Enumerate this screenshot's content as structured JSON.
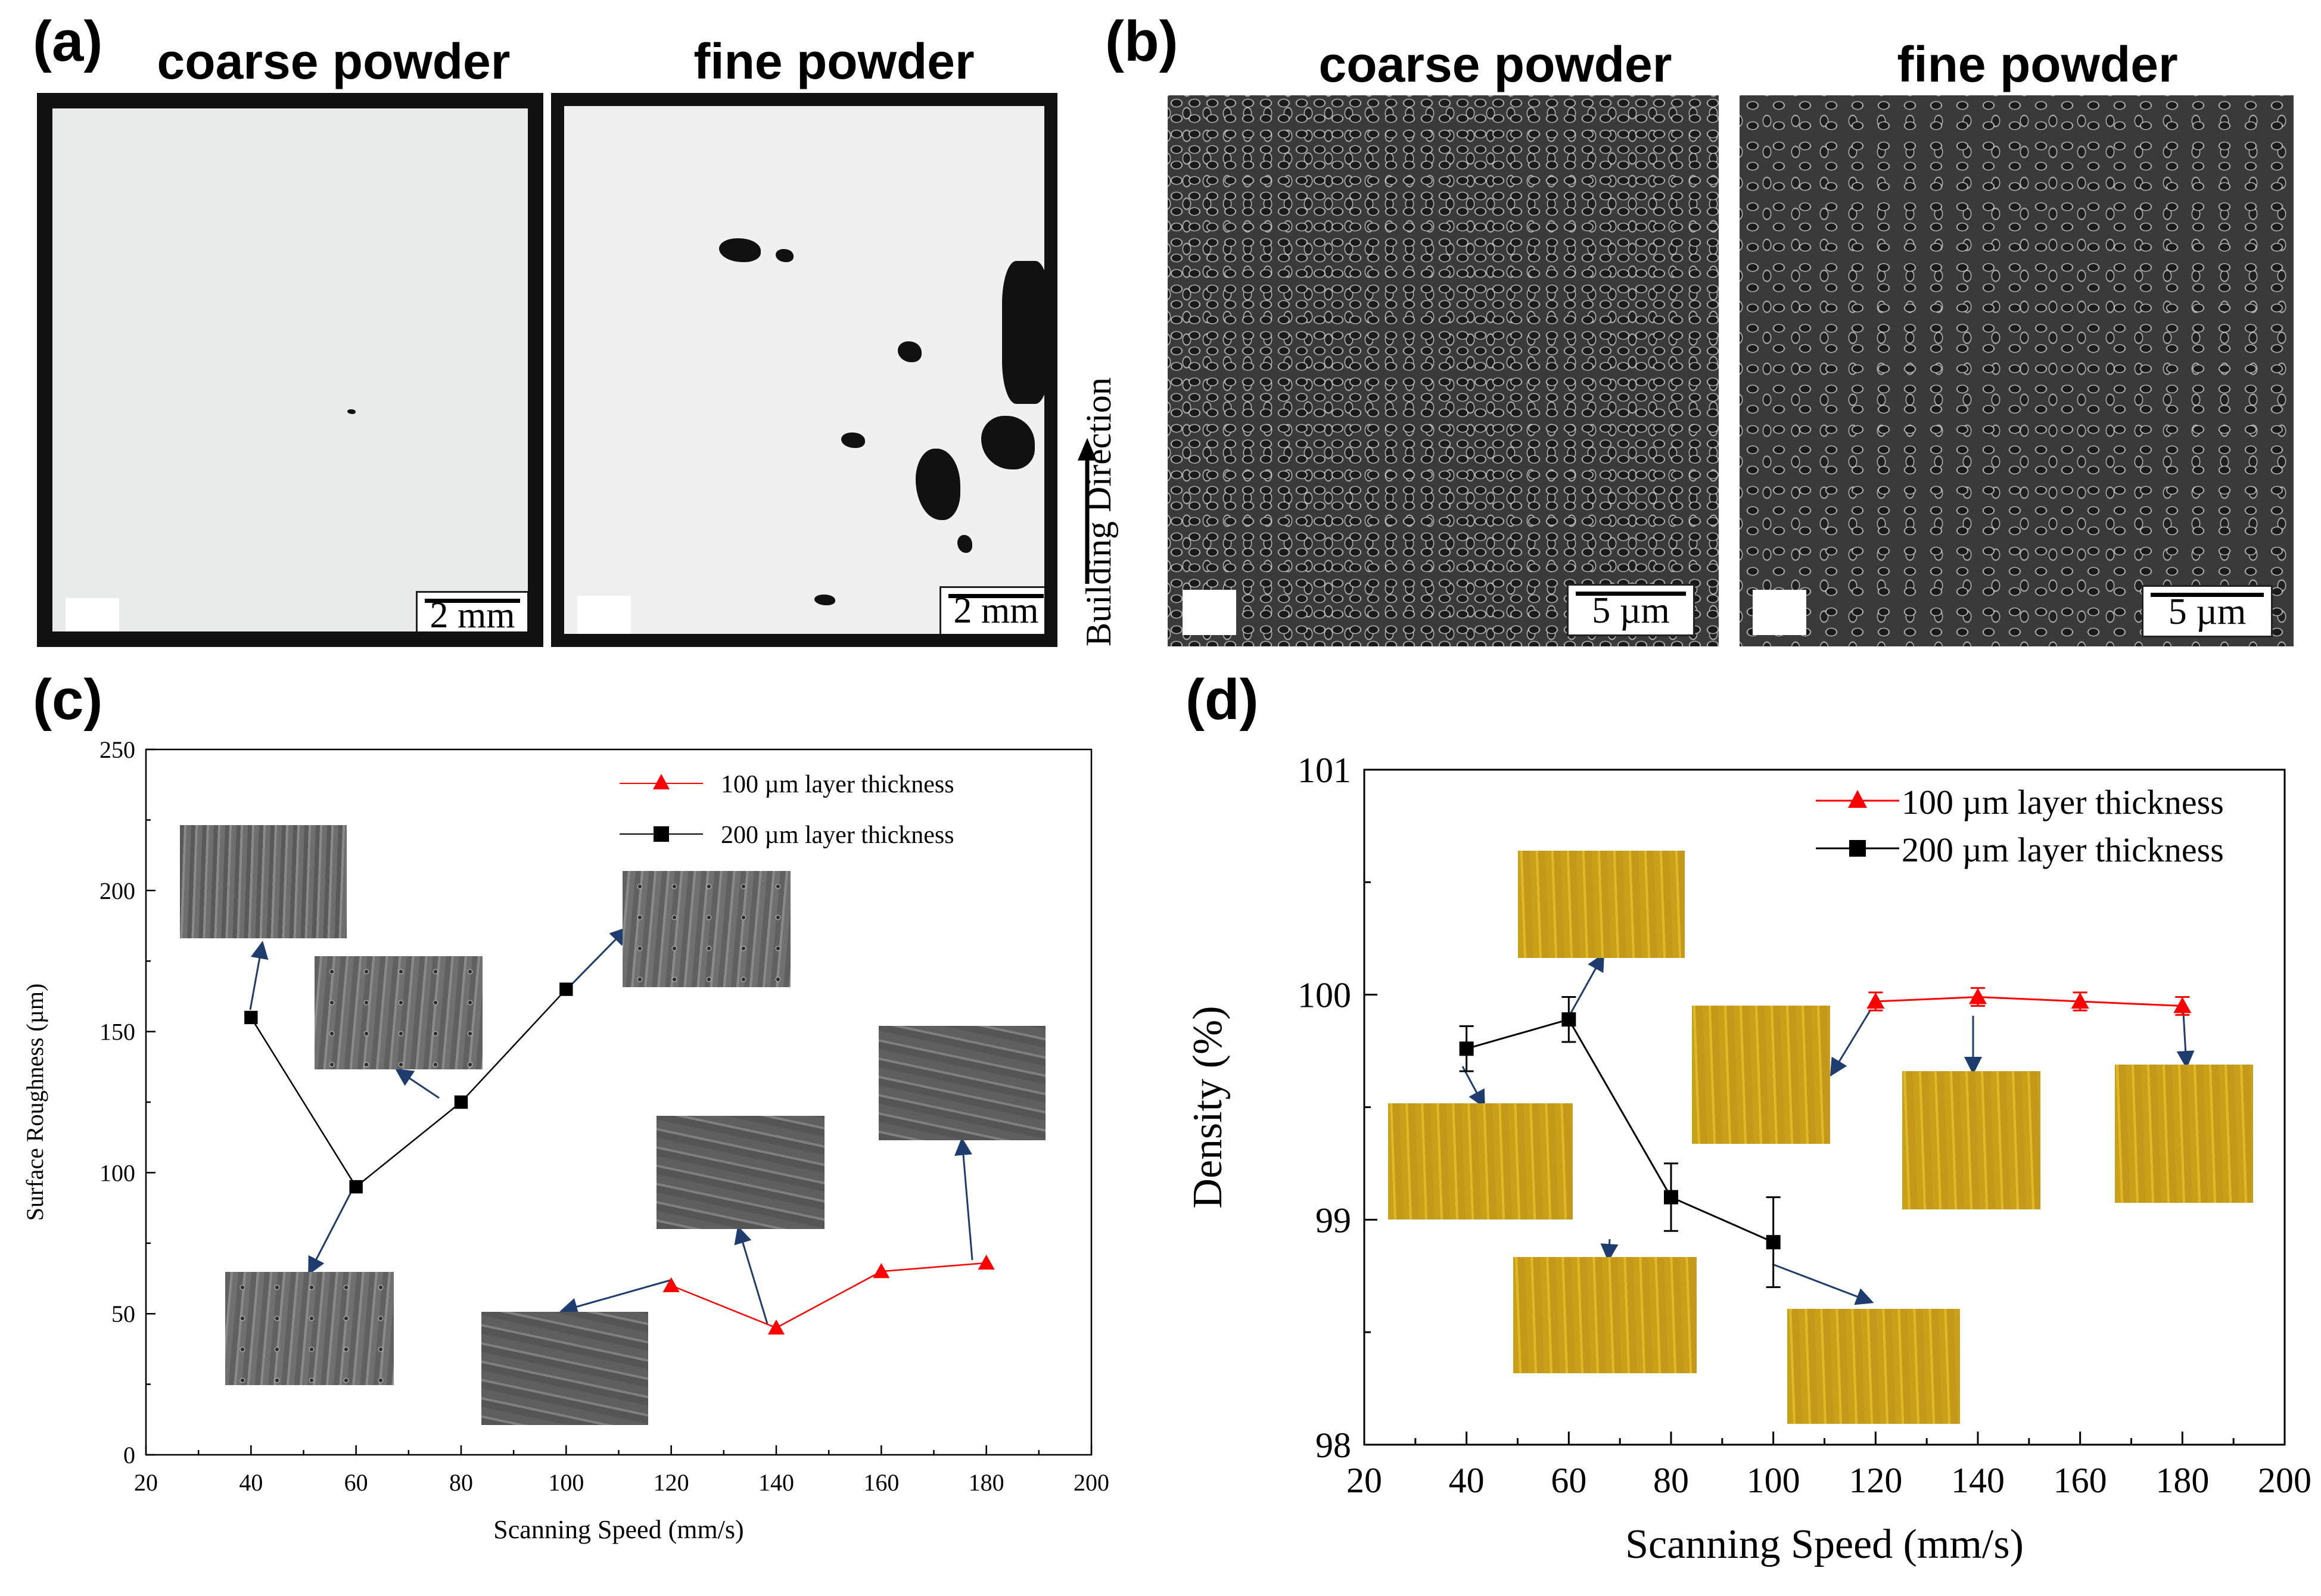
{
  "panel_a": {
    "label": "(a)",
    "titles": [
      "coarse powder",
      "fine powder"
    ],
    "scalebars": [
      "2 mm",
      "2 mm"
    ],
    "building_direction": "Building Direction"
  },
  "panel_b": {
    "label": "(b)",
    "titles": [
      "coarse powder",
      "fine powder"
    ],
    "scalebars": [
      "5 µm",
      "5 µm"
    ]
  },
  "panel_c": {
    "label": "(c)"
  },
  "panel_d": {
    "label": "(d)"
  },
  "colors": {
    "red_series": "#ff0000",
    "black_series": "#000000",
    "arrow": "#1f3c6e"
  },
  "chart_data": [
    {
      "type": "line",
      "xlabel": "Scanning Speed (mm/s)",
      "ylabel": "Surface Roughness (µm)",
      "xlim": [
        20,
        200
      ],
      "ylim": [
        0,
        250
      ],
      "xticks": [
        20,
        40,
        60,
        80,
        100,
        120,
        140,
        160,
        180,
        200
      ],
      "yticks": [
        0,
        50,
        100,
        150,
        200,
        250
      ],
      "legend_position": "top-right",
      "series": [
        {
          "name": "100 µm layer thickness",
          "color": "#ff0000",
          "marker": "triangle",
          "x": [
            120,
            140,
            160,
            180
          ],
          "y": [
            60,
            45,
            65,
            68
          ]
        },
        {
          "name": "200 µm layer thickness",
          "color": "#000000",
          "marker": "square",
          "x": [
            40,
            60,
            80,
            100
          ],
          "y": [
            155,
            95,
            125,
            165
          ]
        }
      ]
    },
    {
      "type": "line",
      "xlabel": "Scanning Speed (mm/s)",
      "ylabel": "Density (%)",
      "xlim": [
        20,
        200
      ],
      "ylim": [
        98,
        101
      ],
      "xticks": [
        20,
        40,
        60,
        80,
        100,
        120,
        140,
        160,
        180,
        200
      ],
      "yticks": [
        98,
        99,
        100,
        101
      ],
      "legend_position": "top-right",
      "series": [
        {
          "name": "100 µm layer thickness",
          "color": "#ff0000",
          "marker": "triangle",
          "x": [
            120,
            140,
            160,
            180
          ],
          "y": [
            99.97,
            99.99,
            99.97,
            99.95
          ],
          "err": [
            0.04,
            0.04,
            0.04,
            0.04
          ]
        },
        {
          "name": "200 µm layer thickness",
          "color": "#000000",
          "marker": "square",
          "x": [
            40,
            60,
            80,
            100
          ],
          "y": [
            99.76,
            99.89,
            99.1,
            98.9
          ],
          "err": [
            0.1,
            0.1,
            0.15,
            0.2
          ]
        }
      ]
    }
  ]
}
